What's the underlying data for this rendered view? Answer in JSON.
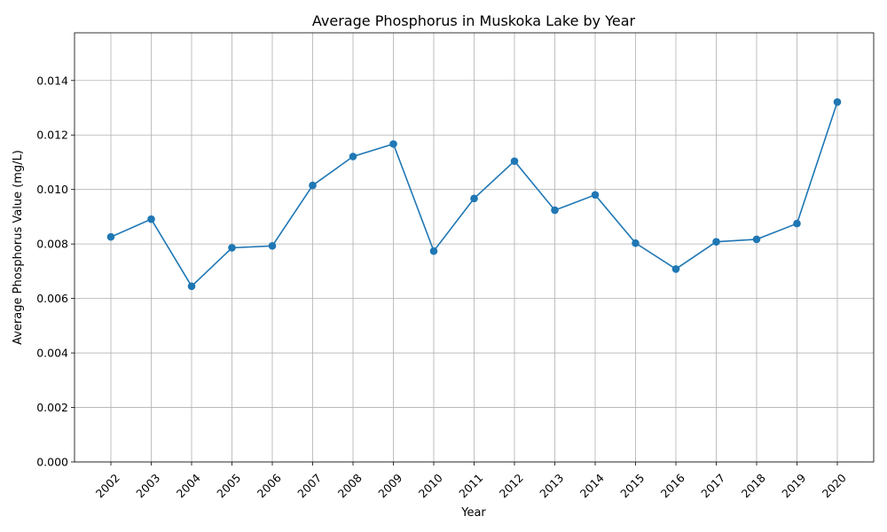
{
  "chart_data": {
    "type": "line",
    "title": "Average Phosphorus in Muskoka Lake by Year",
    "xlabel": "Year",
    "ylabel": "Average Phosphorus Value (mg/L)",
    "categories": [
      "2002",
      "2003",
      "2004",
      "2005",
      "2006",
      "2007",
      "2008",
      "2009",
      "2010",
      "2011",
      "2012",
      "2013",
      "2014",
      "2015",
      "2016",
      "2017",
      "2018",
      "2019",
      "2020"
    ],
    "series": [
      {
        "values": [
          0.00826,
          0.00891,
          0.00645,
          0.00786,
          0.00793,
          0.01015,
          0.01121,
          0.01167,
          0.00774,
          0.00967,
          0.01104,
          0.00924,
          0.0098,
          0.00803,
          0.00708,
          0.00808,
          0.00817,
          0.00875,
          0.01321
        ],
        "color": "#1f77b4"
      }
    ],
    "ylim": [
      0,
      0.01575
    ],
    "yticks": [
      "0.000",
      "0.002",
      "0.004",
      "0.006",
      "0.008",
      "0.010",
      "0.012",
      "0.014"
    ],
    "grid": true,
    "legend": "none"
  }
}
